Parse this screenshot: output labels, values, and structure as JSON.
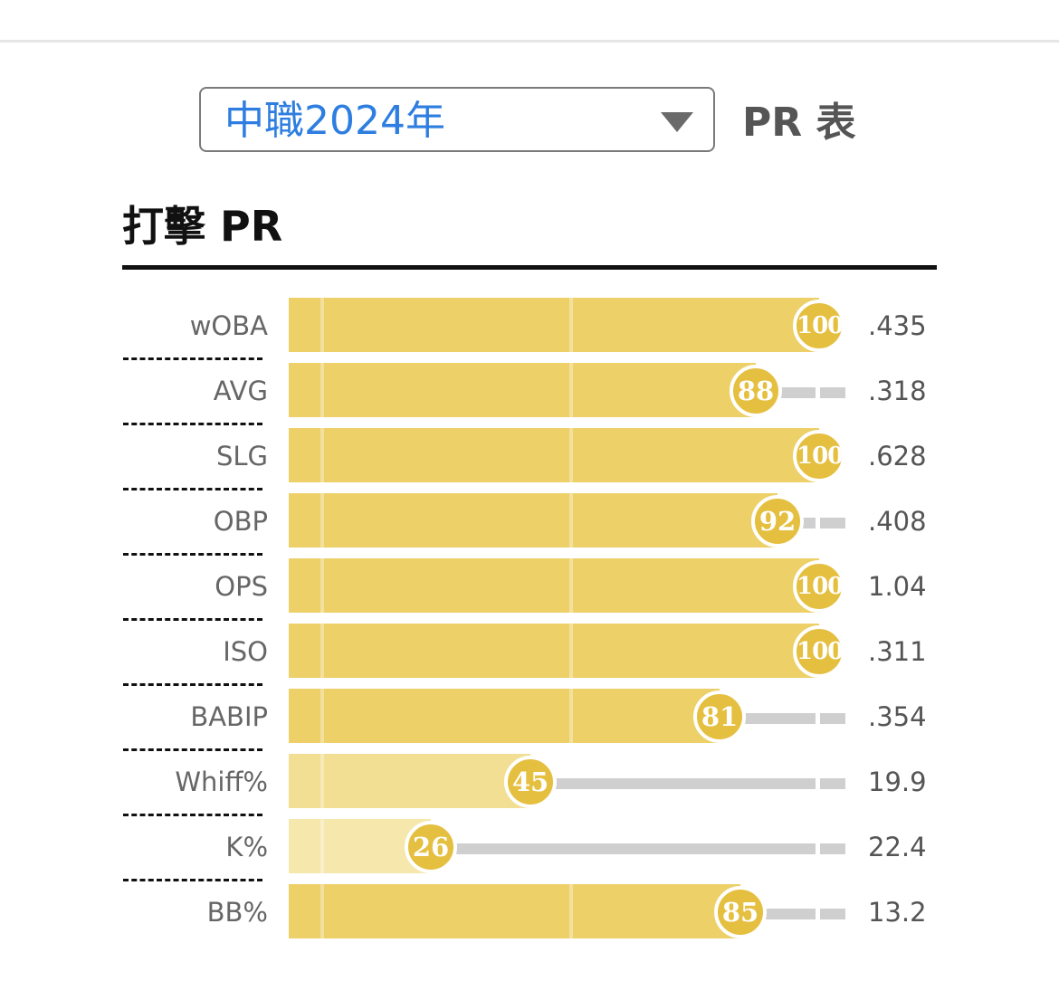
{
  "header": {
    "season_select_value": "中職2024年",
    "page_title": "PR 表"
  },
  "section": {
    "title": "打擊 PR"
  },
  "colors": {
    "bar_high": "#edd068",
    "bar_mid": "#f2df94",
    "bar_low": "#f6e7ad",
    "badge": "#e5bf3f",
    "select_text": "#2d7ee0"
  },
  "metrics": [
    {
      "label": "wOBA",
      "pr": 100,
      "value": ".435"
    },
    {
      "label": "AVG",
      "pr": 88,
      "value": ".318"
    },
    {
      "label": "SLG",
      "pr": 100,
      "value": ".628"
    },
    {
      "label": "OBP",
      "pr": 92,
      "value": ".408"
    },
    {
      "label": "OPS",
      "pr": 100,
      "value": "1.04"
    },
    {
      "label": "ISO",
      "pr": 100,
      "value": ".311"
    },
    {
      "label": "BABIP",
      "pr": 81,
      "value": ".354"
    },
    {
      "label": "Whiff%",
      "pr": 45,
      "value": "19.9"
    },
    {
      "label": "K%",
      "pr": 26,
      "value": "22.4"
    },
    {
      "label": "BB%",
      "pr": 85,
      "value": "13.2"
    }
  ]
}
